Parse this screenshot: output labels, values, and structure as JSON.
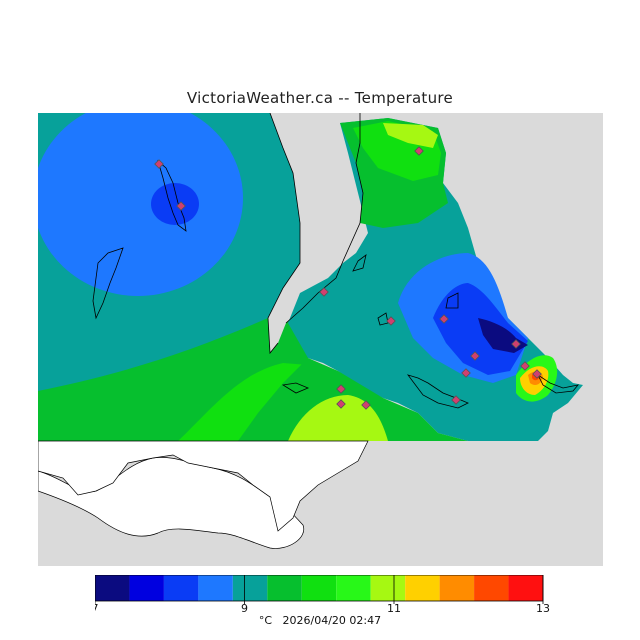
{
  "title": "VictoriaWeather.ca -- Temperature",
  "legend": {
    "colors": [
      "#0b0b80",
      "#0000e0",
      "#0a3cf5",
      "#1e78ff",
      "#07a19a",
      "#06bf2e",
      "#10e010",
      "#28f818",
      "#a6f812",
      "#ffd000",
      "#ff8c00",
      "#ff4800",
      "#ff1010"
    ],
    "tick_labels": [
      "7",
      "9",
      "11",
      "13"
    ],
    "unit_label": "°C",
    "timestamp": "2026/04/20 02:47"
  },
  "map": {
    "land_color": "#dadada",
    "water_color": "#ffffff",
    "station_marker_color": "#d04070"
  }
}
